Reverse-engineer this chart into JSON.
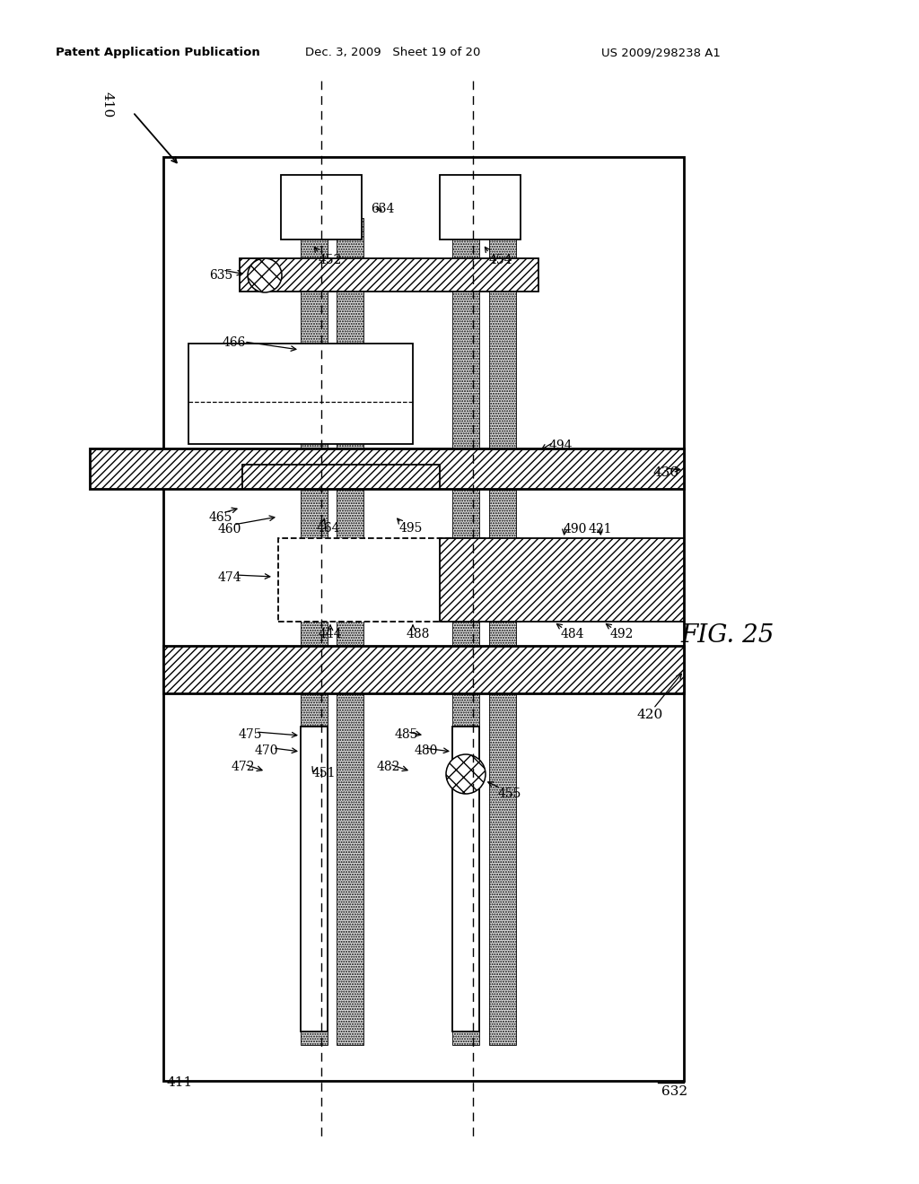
{
  "title_left": "Patent Application Publication",
  "title_mid": "Dec. 3, 2009   Sheet 19 of 20",
  "title_right": "US 2009/298238 A1",
  "fig_label": "FIG. 25",
  "bg_color": "#ffffff"
}
